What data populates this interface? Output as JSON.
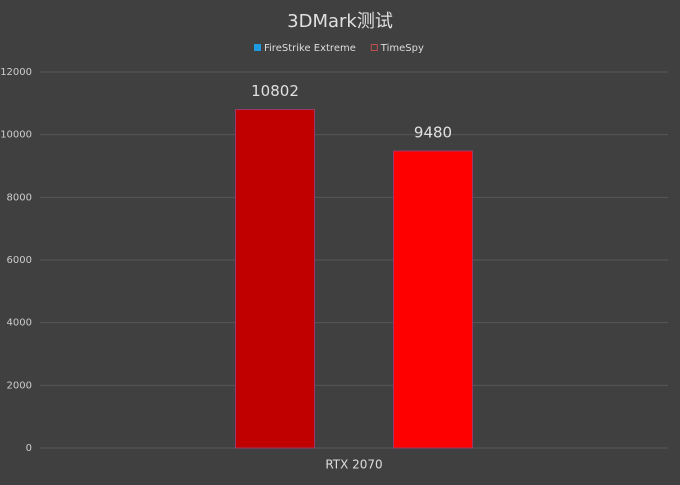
{
  "chart_data": {
    "type": "bar",
    "title": "3DMark测试",
    "categories": [
      "RTX 2070"
    ],
    "series": [
      {
        "name": "FireStrike Extreme",
        "color": "#c00000",
        "legend_color": "#1e9be0",
        "values": [
          10802
        ]
      },
      {
        "name": "TimeSpy",
        "color": "#ff0000",
        "legend_color": "#c0504d",
        "values": [
          9480
        ]
      }
    ],
    "ylim": [
      0,
      12000
    ],
    "yticks": [
      0,
      2000,
      4000,
      6000,
      8000,
      10000,
      12000
    ],
    "grid": true,
    "legend": "top"
  }
}
